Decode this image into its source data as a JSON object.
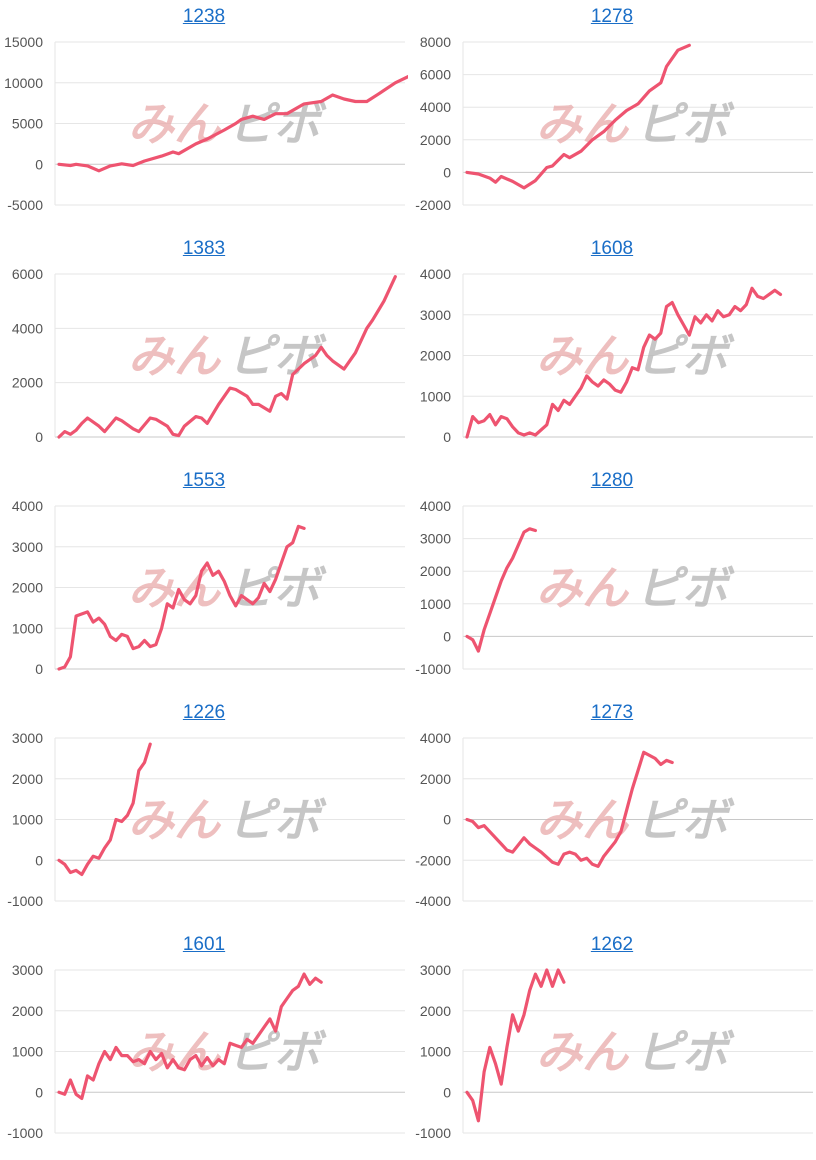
{
  "colors": {
    "line": "#ee5470",
    "grid": "#e6e6e6",
    "zero": "#c8c8c8",
    "link": "#1a6ec7",
    "tick": "#555555",
    "wm_left": "#e9aaaa",
    "wm_right": "#b3b3b3"
  },
  "watermark": {
    "left": "みん",
    "right": "ピボ"
  },
  "chart_data": [
    {
      "type": "line",
      "title": "1238",
      "ylim": [
        -5000,
        15000
      ],
      "yticks": [
        "15000",
        "10000",
        "5000",
        "0",
        "-5000"
      ],
      "ytick_values": [
        15000,
        10000,
        5000,
        0,
        -5000
      ],
      "x_count": 60,
      "points": [
        [
          0,
          0
        ],
        [
          2,
          -150
        ],
        [
          3,
          0
        ],
        [
          5,
          -200
        ],
        [
          7,
          -800
        ],
        [
          9,
          -200
        ],
        [
          11,
          50
        ],
        [
          13,
          -150
        ],
        [
          15,
          400
        ],
        [
          18,
          1000
        ],
        [
          20,
          1500
        ],
        [
          21,
          1300
        ],
        [
          24,
          2500
        ],
        [
          26,
          3100
        ],
        [
          29,
          4200
        ],
        [
          31,
          5000
        ],
        [
          32,
          5500
        ],
        [
          34,
          5900
        ],
        [
          36,
          5500
        ],
        [
          38,
          6200
        ],
        [
          40,
          6200
        ],
        [
          43,
          7400
        ],
        [
          46,
          7700
        ],
        [
          48,
          8500
        ],
        [
          50,
          8000
        ],
        [
          52,
          7700
        ],
        [
          54,
          7700
        ],
        [
          56,
          8600
        ],
        [
          59,
          10000
        ],
        [
          62,
          11000
        ],
        [
          65,
          12500
        ]
      ]
    },
    {
      "type": "line",
      "title": "1278",
      "ylim": [
        -2000,
        8000
      ],
      "yticks": [
        "8000",
        "6000",
        "4000",
        "2000",
        "0",
        "-2000"
      ],
      "ytick_values": [
        8000,
        6000,
        4000,
        2000,
        0,
        -2000
      ],
      "x_count": 60,
      "points": [
        [
          0,
          0
        ],
        [
          2,
          -100
        ],
        [
          4,
          -350
        ],
        [
          5,
          -600
        ],
        [
          6,
          -250
        ],
        [
          8,
          -550
        ],
        [
          10,
          -950
        ],
        [
          12,
          -500
        ],
        [
          14,
          300
        ],
        [
          15,
          400
        ],
        [
          17,
          1100
        ],
        [
          18,
          900
        ],
        [
          20,
          1300
        ],
        [
          22,
          2000
        ],
        [
          24,
          2500
        ],
        [
          26,
          3200
        ],
        [
          28,
          3800
        ],
        [
          30,
          4200
        ],
        [
          32,
          5000
        ],
        [
          34,
          5500
        ],
        [
          35,
          6500
        ],
        [
          37,
          7500
        ],
        [
          39,
          7800
        ]
      ]
    },
    {
      "type": "line",
      "title": "1383",
      "ylim": [
        0,
        6000
      ],
      "yticks": [
        "6000",
        "4000",
        "2000",
        "0"
      ],
      "ytick_values": [
        6000,
        4000,
        2000,
        0
      ],
      "x_count": 60,
      "points": [
        [
          0,
          0
        ],
        [
          1,
          200
        ],
        [
          2,
          100
        ],
        [
          3,
          250
        ],
        [
          4,
          500
        ],
        [
          5,
          700
        ],
        [
          7,
          400
        ],
        [
          8,
          200
        ],
        [
          10,
          700
        ],
        [
          11,
          600
        ],
        [
          13,
          300
        ],
        [
          14,
          200
        ],
        [
          16,
          700
        ],
        [
          17,
          650
        ],
        [
          19,
          400
        ],
        [
          20,
          100
        ],
        [
          21,
          50
        ],
        [
          22,
          400
        ],
        [
          24,
          750
        ],
        [
          25,
          700
        ],
        [
          26,
          500
        ],
        [
          28,
          1200
        ],
        [
          30,
          1800
        ],
        [
          31,
          1750
        ],
        [
          33,
          1500
        ],
        [
          34,
          1200
        ],
        [
          35,
          1200
        ],
        [
          37,
          950
        ],
        [
          38,
          1500
        ],
        [
          39,
          1600
        ],
        [
          40,
          1400
        ],
        [
          41,
          2300
        ],
        [
          43,
          2700
        ],
        [
          45,
          3000
        ],
        [
          46,
          3300
        ],
        [
          47,
          3000
        ],
        [
          48,
          2800
        ],
        [
          50,
          2500
        ],
        [
          51,
          2800
        ],
        [
          52,
          3100
        ],
        [
          54,
          4000
        ],
        [
          55,
          4300
        ],
        [
          57,
          5000
        ],
        [
          59,
          5900
        ]
      ]
    },
    {
      "type": "line",
      "title": "1608",
      "ylim": [
        0,
        4000
      ],
      "yticks": [
        "4000",
        "3000",
        "2000",
        "1000",
        "0"
      ],
      "ytick_values": [
        4000,
        3000,
        2000,
        1000,
        0
      ],
      "x_count": 60,
      "points": [
        [
          0,
          0
        ],
        [
          1,
          500
        ],
        [
          2,
          350
        ],
        [
          3,
          400
        ],
        [
          4,
          550
        ],
        [
          5,
          300
        ],
        [
          6,
          500
        ],
        [
          7,
          450
        ],
        [
          8,
          250
        ],
        [
          9,
          100
        ],
        [
          10,
          50
        ],
        [
          11,
          100
        ],
        [
          12,
          50
        ],
        [
          14,
          300
        ],
        [
          15,
          800
        ],
        [
          16,
          650
        ],
        [
          17,
          900
        ],
        [
          18,
          800
        ],
        [
          20,
          1200
        ],
        [
          21,
          1500
        ],
        [
          22,
          1350
        ],
        [
          23,
          1250
        ],
        [
          24,
          1400
        ],
        [
          25,
          1300
        ],
        [
          26,
          1150
        ],
        [
          27,
          1100
        ],
        [
          28,
          1350
        ],
        [
          29,
          1700
        ],
        [
          30,
          1650
        ],
        [
          31,
          2200
        ],
        [
          32,
          2500
        ],
        [
          33,
          2400
        ],
        [
          34,
          2550
        ],
        [
          35,
          3200
        ],
        [
          36,
          3300
        ],
        [
          37,
          3000
        ],
        [
          38,
          2750
        ],
        [
          39,
          2500
        ],
        [
          40,
          2950
        ],
        [
          41,
          2800
        ],
        [
          42,
          3000
        ],
        [
          43,
          2850
        ],
        [
          44,
          3100
        ],
        [
          45,
          2950
        ],
        [
          46,
          3000
        ],
        [
          47,
          3200
        ],
        [
          48,
          3100
        ],
        [
          49,
          3250
        ],
        [
          50,
          3650
        ],
        [
          51,
          3450
        ],
        [
          52,
          3400
        ],
        [
          53,
          3500
        ],
        [
          54,
          3600
        ],
        [
          55,
          3500
        ]
      ]
    },
    {
      "type": "line",
      "title": "1553",
      "ylim": [
        0,
        4000
      ],
      "yticks": [
        "4000",
        "3000",
        "2000",
        "1000",
        "0"
      ],
      "ytick_values": [
        4000,
        3000,
        2000,
        1000,
        0
      ],
      "x_count": 60,
      "points": [
        [
          0,
          0
        ],
        [
          1,
          50
        ],
        [
          2,
          300
        ],
        [
          3,
          1300
        ],
        [
          5,
          1400
        ],
        [
          6,
          1150
        ],
        [
          7,
          1250
        ],
        [
          8,
          1100
        ],
        [
          9,
          800
        ],
        [
          10,
          700
        ],
        [
          11,
          850
        ],
        [
          12,
          800
        ],
        [
          13,
          500
        ],
        [
          14,
          550
        ],
        [
          15,
          700
        ],
        [
          16,
          550
        ],
        [
          17,
          600
        ],
        [
          18,
          1000
        ],
        [
          19,
          1600
        ],
        [
          20,
          1500
        ],
        [
          21,
          1950
        ],
        [
          22,
          1700
        ],
        [
          23,
          1600
        ],
        [
          24,
          1800
        ],
        [
          25,
          2400
        ],
        [
          26,
          2600
        ],
        [
          27,
          2300
        ],
        [
          28,
          2400
        ],
        [
          29,
          2150
        ],
        [
          30,
          1800
        ],
        [
          31,
          1550
        ],
        [
          32,
          1800
        ],
        [
          33,
          1700
        ],
        [
          34,
          1600
        ],
        [
          35,
          1750
        ],
        [
          36,
          2100
        ],
        [
          37,
          1900
        ],
        [
          38,
          2200
        ],
        [
          39,
          2600
        ],
        [
          40,
          3000
        ],
        [
          41,
          3100
        ],
        [
          42,
          3500
        ],
        [
          43,
          3450
        ]
      ]
    },
    {
      "type": "line",
      "title": "1280",
      "ylim": [
        -1000,
        4000
      ],
      "yticks": [
        "4000",
        "3000",
        "2000",
        "1000",
        "0",
        "-1000"
      ],
      "ytick_values": [
        4000,
        3000,
        2000,
        1000,
        0,
        -1000
      ],
      "x_count": 60,
      "points": [
        [
          0,
          0
        ],
        [
          1,
          -100
        ],
        [
          2,
          -450
        ],
        [
          3,
          200
        ],
        [
          4,
          700
        ],
        [
          5,
          1200
        ],
        [
          6,
          1700
        ],
        [
          7,
          2100
        ],
        [
          8,
          2400
        ],
        [
          9,
          2800
        ],
        [
          10,
          3200
        ],
        [
          11,
          3300
        ],
        [
          12,
          3250
        ]
      ]
    },
    {
      "type": "line",
      "title": "1226",
      "ylim": [
        -1000,
        3000
      ],
      "yticks": [
        "3000",
        "2000",
        "1000",
        "0",
        "-1000"
      ],
      "ytick_values": [
        3000,
        2000,
        1000,
        0,
        -1000
      ],
      "x_count": 60,
      "points": [
        [
          0,
          0
        ],
        [
          1,
          -100
        ],
        [
          2,
          -300
        ],
        [
          3,
          -250
        ],
        [
          4,
          -350
        ],
        [
          5,
          -100
        ],
        [
          6,
          100
        ],
        [
          7,
          50
        ],
        [
          8,
          300
        ],
        [
          9,
          500
        ],
        [
          10,
          1000
        ],
        [
          11,
          950
        ],
        [
          12,
          1100
        ],
        [
          13,
          1400
        ],
        [
          14,
          2200
        ],
        [
          15,
          2400
        ],
        [
          16,
          2850
        ]
      ]
    },
    {
      "type": "line",
      "title": "1273",
      "ylim": [
        -4000,
        4000
      ],
      "yticks": [
        "4000",
        "2000",
        "0",
        "-2000",
        "-4000"
      ],
      "ytick_values": [
        4000,
        2000,
        0,
        -2000,
        -4000
      ],
      "x_count": 60,
      "points": [
        [
          0,
          0
        ],
        [
          1,
          -100
        ],
        [
          2,
          -400
        ],
        [
          3,
          -300
        ],
        [
          4,
          -600
        ],
        [
          6,
          -1200
        ],
        [
          7,
          -1500
        ],
        [
          8,
          -1600
        ],
        [
          10,
          -900
        ],
        [
          11,
          -1200
        ],
        [
          12,
          -1400
        ],
        [
          13,
          -1600
        ],
        [
          15,
          -2100
        ],
        [
          16,
          -2200
        ],
        [
          17,
          -1700
        ],
        [
          18,
          -1600
        ],
        [
          19,
          -1700
        ],
        [
          20,
          -2000
        ],
        [
          21,
          -1900
        ],
        [
          22,
          -2200
        ],
        [
          23,
          -2300
        ],
        [
          24,
          -1800
        ],
        [
          26,
          -1100
        ],
        [
          27,
          -600
        ],
        [
          29,
          1500
        ],
        [
          30,
          2400
        ],
        [
          31,
          3300
        ],
        [
          33,
          3000
        ],
        [
          34,
          2700
        ],
        [
          35,
          2900
        ],
        [
          36,
          2800
        ]
      ]
    },
    {
      "type": "line",
      "title": "1601",
      "ylim": [
        -1000,
        3000
      ],
      "yticks": [
        "3000",
        "2000",
        "1000",
        "0",
        "-1000"
      ],
      "ytick_values": [
        3000,
        2000,
        1000,
        0,
        -1000
      ],
      "x_count": 60,
      "points": [
        [
          0,
          0
        ],
        [
          1,
          -50
        ],
        [
          2,
          300
        ],
        [
          3,
          -50
        ],
        [
          4,
          -150
        ],
        [
          5,
          400
        ],
        [
          6,
          300
        ],
        [
          7,
          700
        ],
        [
          8,
          1000
        ],
        [
          9,
          800
        ],
        [
          10,
          1100
        ],
        [
          11,
          900
        ],
        [
          12,
          900
        ],
        [
          13,
          750
        ],
        [
          14,
          800
        ],
        [
          15,
          700
        ],
        [
          16,
          1000
        ],
        [
          17,
          800
        ],
        [
          18,
          950
        ],
        [
          19,
          600
        ],
        [
          20,
          800
        ],
        [
          21,
          600
        ],
        [
          22,
          550
        ],
        [
          23,
          800
        ],
        [
          24,
          900
        ],
        [
          25,
          650
        ],
        [
          26,
          850
        ],
        [
          27,
          650
        ],
        [
          28,
          800
        ],
        [
          29,
          700
        ],
        [
          30,
          1200
        ],
        [
          31,
          1150
        ],
        [
          32,
          1100
        ],
        [
          33,
          1300
        ],
        [
          34,
          1200
        ],
        [
          35,
          1400
        ],
        [
          36,
          1600
        ],
        [
          37,
          1800
        ],
        [
          38,
          1500
        ],
        [
          39,
          2100
        ],
        [
          40,
          2300
        ],
        [
          41,
          2500
        ],
        [
          42,
          2600
        ],
        [
          43,
          2900
        ],
        [
          44,
          2650
        ],
        [
          45,
          2800
        ],
        [
          46,
          2700
        ]
      ]
    },
    {
      "type": "line",
      "title": "1262",
      "ylim": [
        -1000,
        3000
      ],
      "yticks": [
        "3000",
        "2000",
        "1000",
        "0",
        "-1000"
      ],
      "ytick_values": [
        3000,
        2000,
        1000,
        0,
        -1000
      ],
      "x_count": 60,
      "points": [
        [
          0,
          0
        ],
        [
          1,
          -200
        ],
        [
          2,
          -700
        ],
        [
          3,
          500
        ],
        [
          4,
          1100
        ],
        [
          5,
          700
        ],
        [
          6,
          200
        ],
        [
          7,
          1100
        ],
        [
          8,
          1900
        ],
        [
          9,
          1500
        ],
        [
          10,
          1900
        ],
        [
          11,
          2500
        ],
        [
          12,
          2900
        ],
        [
          13,
          2600
        ],
        [
          14,
          3000
        ],
        [
          15,
          2600
        ],
        [
          16,
          3000
        ],
        [
          17,
          2700
        ]
      ]
    }
  ]
}
